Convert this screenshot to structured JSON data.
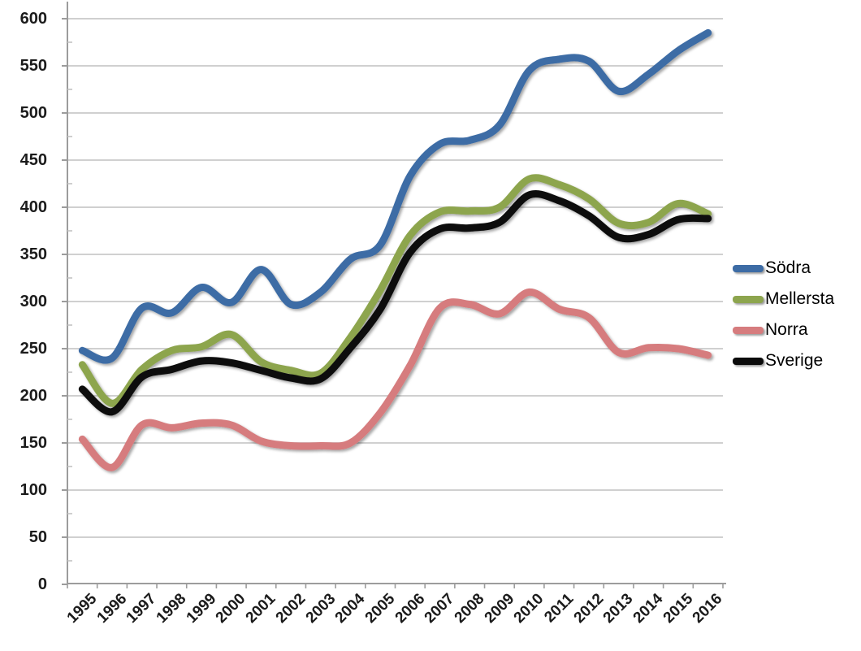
{
  "page": {
    "background": "#ffffff",
    "title": ""
  },
  "chart_data": {
    "type": "line",
    "title": "",
    "xlabel": "",
    "ylabel": "",
    "smooth": true,
    "grid": true,
    "legend_position": "right",
    "ylim": [
      0,
      600
    ],
    "y_ticks": [
      0,
      50,
      100,
      150,
      200,
      250,
      300,
      350,
      400,
      450,
      500,
      550,
      600
    ],
    "categories": [
      "1995",
      "1996",
      "1997",
      "1998",
      "1999",
      "2000",
      "2001",
      "2002",
      "2003",
      "2004",
      "2005",
      "2006",
      "2007",
      "2008",
      "2009",
      "2010",
      "2011",
      "2012",
      "2013",
      "2014",
      "2015",
      "2016"
    ],
    "series": [
      {
        "name": "Södra",
        "color": "#3D6CA5",
        "values": [
          248,
          240,
          293,
          288,
          315,
          299,
          334,
          297,
          310,
          345,
          360,
          433,
          467,
          471,
          487,
          545,
          557,
          555,
          523,
          541,
          566,
          585
        ]
      },
      {
        "name": "Mellersta",
        "color": "#8DA54E",
        "values": [
          233,
          192,
          228,
          248,
          252,
          265,
          236,
          227,
          224,
          262,
          312,
          370,
          395,
          396,
          400,
          430,
          424,
          409,
          383,
          384,
          404,
          393
        ]
      },
      {
        "name": "Norra",
        "color": "#D67C7E",
        "values": [
          154,
          124,
          169,
          166,
          171,
          169,
          152,
          147,
          147,
          150,
          182,
          232,
          293,
          297,
          287,
          310,
          292,
          283,
          246,
          251,
          250,
          243
        ]
      },
      {
        "name": "Sverige",
        "color": "#0B0B0B",
        "values": [
          207,
          183,
          220,
          228,
          237,
          235,
          227,
          219,
          218,
          251,
          292,
          352,
          377,
          378,
          384,
          413,
          407,
          391,
          368,
          371,
          387,
          388
        ]
      }
    ],
    "colors": {
      "gridline": "#C9C9C9",
      "axis": "#9C9C9C",
      "minor_tick": "#C3C3C3",
      "tick_label": "#1B1B1B",
      "legend_text": "#000000"
    }
  }
}
